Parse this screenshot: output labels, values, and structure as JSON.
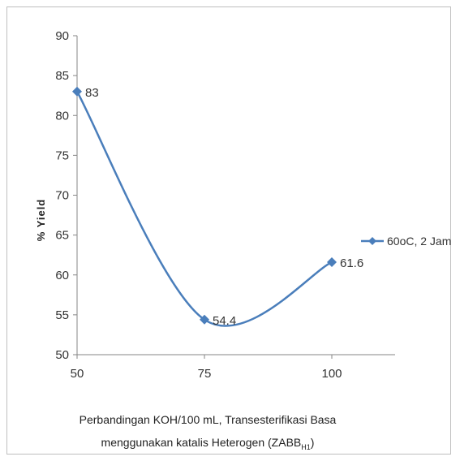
{
  "chart_data": {
    "type": "line",
    "title": "",
    "xlabel_line1": "Perbandingan KOH/100 mL, Transesterifikasi Basa",
    "xlabel_line2": "menggunakan katalis Heterogen (ZABB",
    "xlabel_sub": "H1",
    "xlabel_end": ")",
    "ylabel": "% Yield",
    "x": [
      50,
      75,
      100
    ],
    "xticks": [
      "50",
      "75",
      "100"
    ],
    "yticks": [
      "50",
      "55",
      "60",
      "65",
      "70",
      "75",
      "80",
      "85",
      "90"
    ],
    "ylim": [
      50,
      90
    ],
    "grid": false,
    "legend_position": "right",
    "series": [
      {
        "name": "60oC, 2 Jam",
        "values": [
          83,
          54.4,
          61.6
        ],
        "labels": [
          "83",
          "54.4",
          "61.6"
        ],
        "color": "#4a7ebb"
      }
    ]
  }
}
